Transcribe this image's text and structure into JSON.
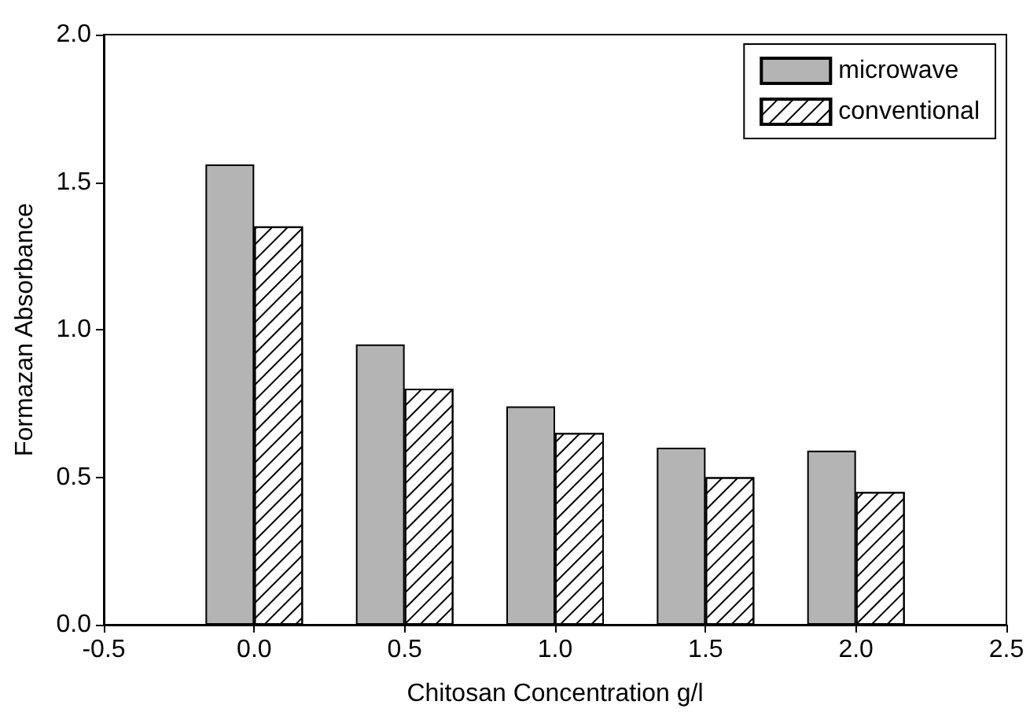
{
  "chart_data": {
    "type": "bar",
    "xlabel": "Chitosan Concentration g/l",
    "ylabel": "Formazan Absorbance",
    "x": [
      0,
      0.5,
      1.0,
      1.5,
      2.0
    ],
    "series": [
      {
        "name": "microwave",
        "color": "#b4b4b4",
        "values": [
          1.56,
          0.95,
          0.74,
          0.6,
          0.59
        ]
      },
      {
        "name": "conventional",
        "color": "#ffffff",
        "values": [
          1.35,
          0.8,
          0.65,
          0.5,
          0.45
        ]
      }
    ],
    "xlim": [
      -0.5,
      2.5
    ],
    "xticks": [
      -0.5,
      {
        "value": 0,
        "label": "0.0"
      },
      0.5,
      {
        "value": 1,
        "label": "1.0"
      },
      1.5,
      {
        "value": 2,
        "label": "2.0"
      },
      2.5
    ],
    "ylim": [
      0,
      2.0
    ],
    "yticks": [
      {
        "value": 0,
        "label": "0.0"
      },
      0.5,
      {
        "value": 1,
        "label": "1.0"
      },
      1.5,
      {
        "value": 2,
        "label": "2.0"
      }
    ],
    "grid": false,
    "legend": "top right"
  }
}
